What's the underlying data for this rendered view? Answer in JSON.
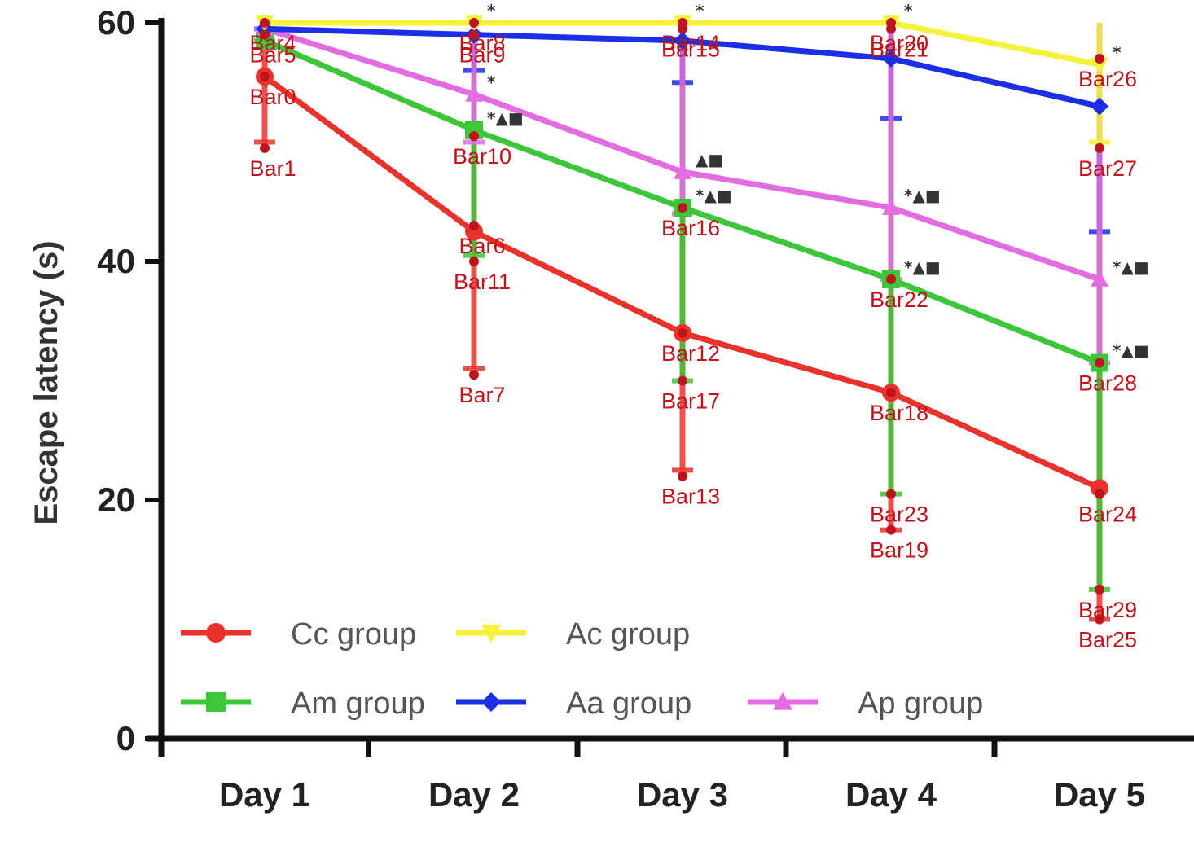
{
  "chart_data": {
    "type": "line",
    "ylabel": "Escape latency (s)",
    "categories": [
      "Day 1",
      "Day 2",
      "Day 3",
      "Day 4",
      "Day 5"
    ],
    "ylim": [
      0,
      60
    ],
    "yticks": [
      "0",
      "20",
      "40",
      "60"
    ],
    "series": [
      {
        "name": "Cc group",
        "color": "#e8322b",
        "marker": "circle",
        "values": [
          55.5,
          42.5,
          34,
          29,
          21
        ]
      },
      {
        "name": "Ac group",
        "color": "#f4f23a",
        "marker": "triangle-down",
        "values": [
          60,
          60,
          60,
          60,
          56.5
        ]
      },
      {
        "name": "Am group",
        "color": "#3cc63a",
        "marker": "square",
        "values": [
          58.5,
          51,
          44.5,
          38.5,
          31.5
        ]
      },
      {
        "name": "Aa group",
        "color": "#1b2fe6",
        "marker": "diamond",
        "values": [
          59.5,
          59,
          58.5,
          57,
          53
        ]
      },
      {
        "name": "Ap group",
        "color": "#e36ce0",
        "marker": "triangle-up",
        "values": [
          59.5,
          54,
          47.5,
          44.5,
          38.5
        ]
      }
    ],
    "significance": [
      {
        "series": "Ac group",
        "marks": [
          "",
          "*",
          "*",
          "*",
          "*"
        ]
      },
      {
        "series": "Am group",
        "marks": [
          "",
          "*▲■",
          "*▲■",
          "*▲■",
          "*▲■"
        ]
      },
      {
        "series": "Ap group",
        "marks": [
          "",
          "*",
          "▲■",
          "*▲■",
          "*▲■"
        ]
      }
    ],
    "error_bars": [
      {
        "series": "Cc group",
        "low": [
          50,
          31,
          22.5,
          17.5,
          10
        ],
        "high": [
          60,
          60,
          60,
          60,
          60
        ]
      },
      {
        "series": "Am group",
        "low": [
          58.5,
          40.5,
          30,
          20.5,
          12.5
        ],
        "high": [
          60,
          60,
          60,
          60,
          60
        ]
      },
      {
        "series": "Aa group",
        "low": [
          59.5,
          56,
          55,
          52,
          42.5
        ],
        "high": [
          60,
          60,
          60,
          60,
          60
        ]
      },
      {
        "series": "Ap group",
        "low": [
          59.5,
          50,
          44,
          38.5,
          31.5
        ],
        "high": [
          60,
          60,
          60,
          60,
          60
        ]
      },
      {
        "series": "Ac group",
        "low": [
          60,
          60,
          60,
          60,
          50
        ],
        "high": [
          60,
          60,
          60,
          60,
          60
        ]
      }
    ],
    "legend": {
      "placement": "bottom-left inside",
      "rows": [
        [
          "Cc group",
          "Ac group"
        ],
        [
          "Am group",
          "Aa group",
          "Ap group"
        ]
      ]
    },
    "annotations": [
      {
        "label": "Bar0",
        "x": "Day 1",
        "y": 55.5
      },
      {
        "label": "Bar1",
        "x": "Day 1",
        "y": 49.5
      },
      {
        "label": "Bar4",
        "x": "Day 1",
        "y": 60
      },
      {
        "label": "Bar5",
        "x": "Day 1",
        "y": 59
      },
      {
        "label": "Bar6",
        "x": "Day 2",
        "y": 43
      },
      {
        "label": "Bar7",
        "x": "Day 2",
        "y": 30.5
      },
      {
        "label": "Bar8",
        "x": "Day 2",
        "y": 60
      },
      {
        "label": "Bar9",
        "x": "Day 2",
        "y": 59
      },
      {
        "label": "Bar10",
        "x": "Day 2",
        "y": 50.5
      },
      {
        "label": "Bar11",
        "x": "Day 2",
        "y": 40
      },
      {
        "label": "Bar12",
        "x": "Day 3",
        "y": 34
      },
      {
        "label": "Bar13",
        "x": "Day 3",
        "y": 22
      },
      {
        "label": "Bar14",
        "x": "Day 3",
        "y": 60
      },
      {
        "label": "Bar15",
        "x": "Day 3",
        "y": 59.5
      },
      {
        "label": "Bar16",
        "x": "Day 3",
        "y": 44.5
      },
      {
        "label": "Bar17",
        "x": "Day 3",
        "y": 30
      },
      {
        "label": "Bar18",
        "x": "Day 4",
        "y": 29
      },
      {
        "label": "Bar19",
        "x": "Day 4",
        "y": 17.5
      },
      {
        "label": "Bar20",
        "x": "Day 4",
        "y": 60
      },
      {
        "label": "Bar21",
        "x": "Day 4",
        "y": 59.5
      },
      {
        "label": "Bar22",
        "x": "Day 4",
        "y": 38.5
      },
      {
        "label": "Bar23",
        "x": "Day 4",
        "y": 20.5
      },
      {
        "label": "Bar24",
        "x": "Day 5",
        "y": 20.5
      },
      {
        "label": "Bar25",
        "x": "Day 5",
        "y": 10
      },
      {
        "label": "Bar26",
        "x": "Day 5",
        "y": 57
      },
      {
        "label": "Bar27",
        "x": "Day 5",
        "y": 49.5
      },
      {
        "label": "Bar28",
        "x": "Day 5",
        "y": 31.5
      },
      {
        "label": "Bar29",
        "x": "Day 5",
        "y": 12.5
      }
    ]
  }
}
